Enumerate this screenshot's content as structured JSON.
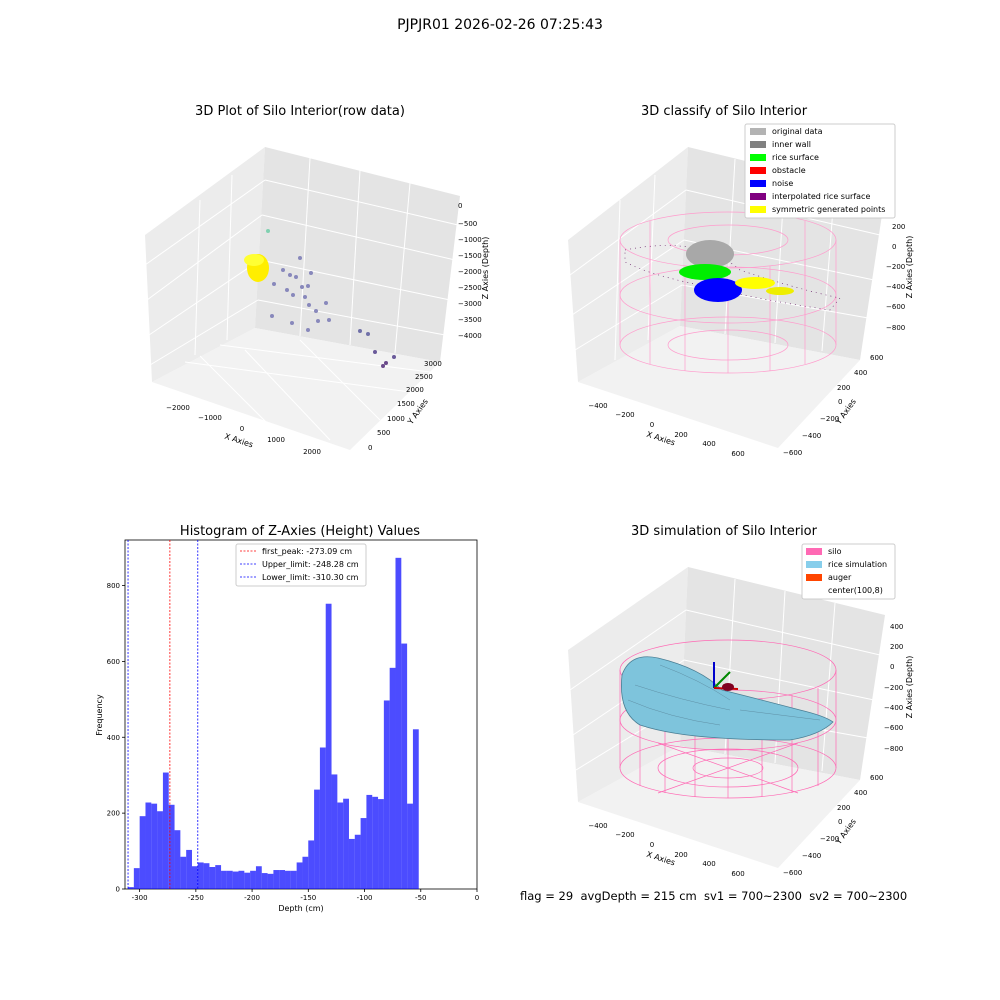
{
  "figure": {
    "suptitle": "PJPJR01 2026-02-26 07:25:43",
    "footer": "flag = 29  avgDepth = 215 cm  sv1 = 700~2300  sv2 = 700~2300"
  },
  "panels": {
    "raw": {
      "title": "3D Plot of Silo Interior(row data)",
      "x_label": "X Axies",
      "y_label": "Y Axies",
      "z_label": "Z Axies (Depth)",
      "x_ticks": [
        "−2000",
        "−1000",
        "0",
        "1000",
        "2000"
      ],
      "y_ticks": [
        "0",
        "500",
        "1000",
        "1500",
        "2000",
        "2500",
        "3000"
      ],
      "z_ticks": [
        "0",
        "−500",
        "−1000",
        "−1500",
        "−2000",
        "−2500",
        "−3000",
        "−3500",
        "−4000"
      ]
    },
    "classify": {
      "title": "3D classify of Silo Interior",
      "x_label": "X Axies",
      "y_label": "Y Axies",
      "z_label": "Z Axies (Depth)",
      "x_ticks": [
        "−400",
        "−200",
        "0",
        "200",
        "400",
        "600"
      ],
      "y_ticks": [
        "−600",
        "−400",
        "−200",
        "0",
        "200",
        "400",
        "600"
      ],
      "z_ticks": [
        "200",
        "0",
        "−200",
        "−400",
        "−600",
        "−800"
      ],
      "legend": [
        {
          "label": "original data",
          "color": "#b3b3b3"
        },
        {
          "label": "inner wall",
          "color": "#808080"
        },
        {
          "label": "rice surface",
          "color": "#00ff00"
        },
        {
          "label": "obstacle",
          "color": "#ff0000"
        },
        {
          "label": "noise",
          "color": "#0000ff"
        },
        {
          "label": "interpolated rice surface",
          "color": "#800080"
        },
        {
          "label": "symmetric generated points",
          "color": "#ffff00"
        }
      ]
    },
    "simulation": {
      "title": "3D simulation of Silo Interior",
      "x_label": "X Axies",
      "y_label": "Y Axies",
      "z_label": "Z Axies (Depth)",
      "x_ticks": [
        "−400",
        "−200",
        "0",
        "200",
        "400",
        "600"
      ],
      "y_ticks": [
        "−600",
        "−400",
        "−200",
        "0",
        "200",
        "400",
        "600"
      ],
      "z_ticks": [
        "400",
        "200",
        "0",
        "−200",
        "−400",
        "−600",
        "−800"
      ],
      "legend": [
        {
          "label": "silo",
          "color": "#ff69b4"
        },
        {
          "label": "rice simulation",
          "color": "#87ceeb"
        },
        {
          "label": "auger",
          "color": "#ff4500"
        },
        {
          "label": "center(100,8)",
          "color": ""
        }
      ]
    }
  },
  "chart_data": {
    "type": "bar",
    "title": "Histogram of Z-Axies (Height) Values",
    "xlabel": "Depth (cm)",
    "ylabel": "Frequency",
    "xlim": [
      -313,
      0
    ],
    "ylim": [
      0,
      920
    ],
    "x_ticks": [
      -300,
      -250,
      -200,
      -150,
      -100,
      -50,
      0
    ],
    "y_ticks": [
      0,
      200,
      400,
      600,
      800
    ],
    "bar_color": "#0000ff",
    "bin_start": -310.3,
    "bin_width": 5.17,
    "values": [
      5,
      55,
      192,
      228,
      225,
      205,
      307,
      222,
      155,
      85,
      103,
      60,
      70,
      68,
      58,
      63,
      48,
      48,
      46,
      48,
      43,
      48,
      60,
      42,
      40,
      50,
      50,
      48,
      48,
      70,
      85,
      128,
      262,
      373,
      752,
      302,
      228,
      238,
      132,
      143,
      187,
      248,
      243,
      237,
      497,
      583,
      873,
      647,
      225,
      421
    ],
    "annotations": [
      {
        "label": "first_peak: -273.09 cm",
        "value": -273.09,
        "color": "#ff0000"
      },
      {
        "label": "Upper_limit: -248.28 cm",
        "value": -248.28,
        "color": "#0000ff"
      },
      {
        "label": "Lower_limit: -310.30 cm",
        "value": -310.3,
        "color": "#0000ff"
      }
    ],
    "legend_position": "top-center",
    "grid": false
  }
}
